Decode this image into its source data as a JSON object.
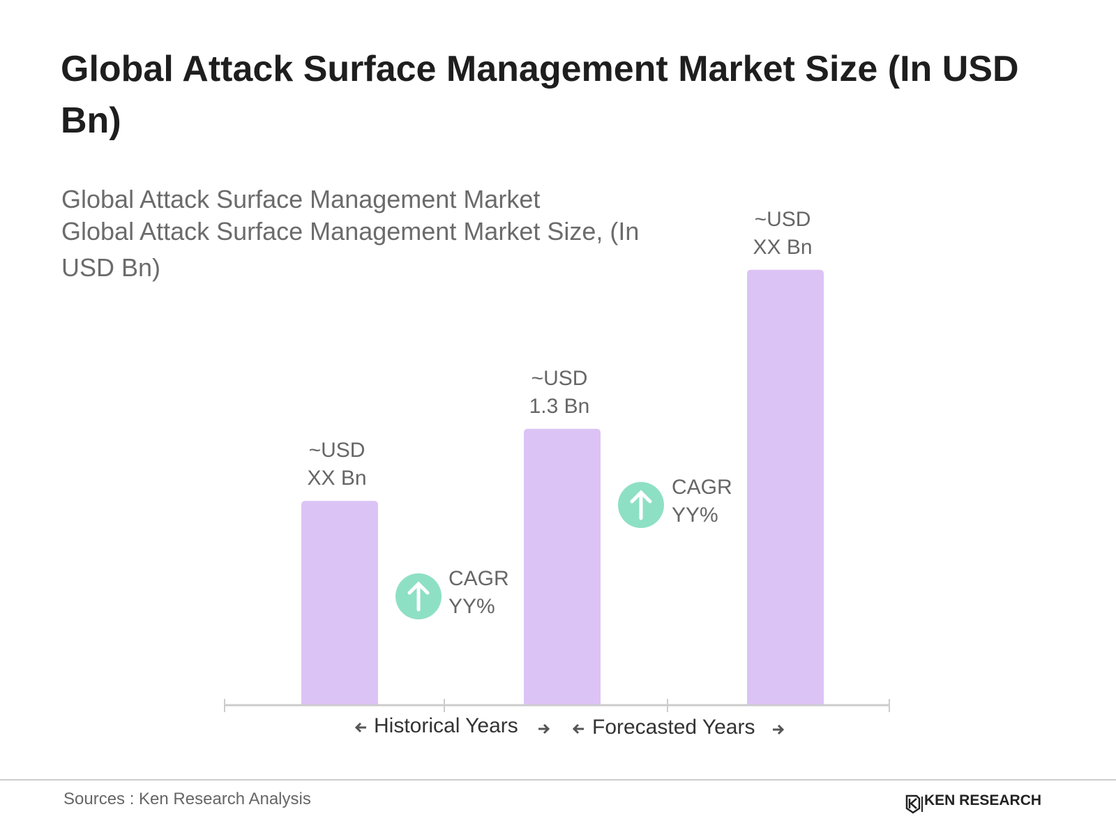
{
  "chart_data": {
    "type": "bar",
    "title": "Global Attack Surface Management Market Size (In USD Bn)",
    "subtitle": [
      "Global Attack Surface Management Market",
      "Global Attack Surface Management Market Size, (In USD Bn)"
    ],
    "categories": [
      null,
      null,
      null
    ],
    "values": [
      0.96,
      1.3,
      2.05
    ],
    "value_labels": [
      "~USD XX Bn",
      "~USD 1.3 Bn",
      "~USD XX Bn"
    ],
    "color": "#dcc3f5",
    "annotations": [
      "CAGR YY%",
      "CAGR YY%"
    ],
    "periods": [
      "Historical Years",
      "Forecasted Years"
    ],
    "source": "Sources : Ken Research Analysis",
    "brand": "KEN RESEARCH"
  }
}
